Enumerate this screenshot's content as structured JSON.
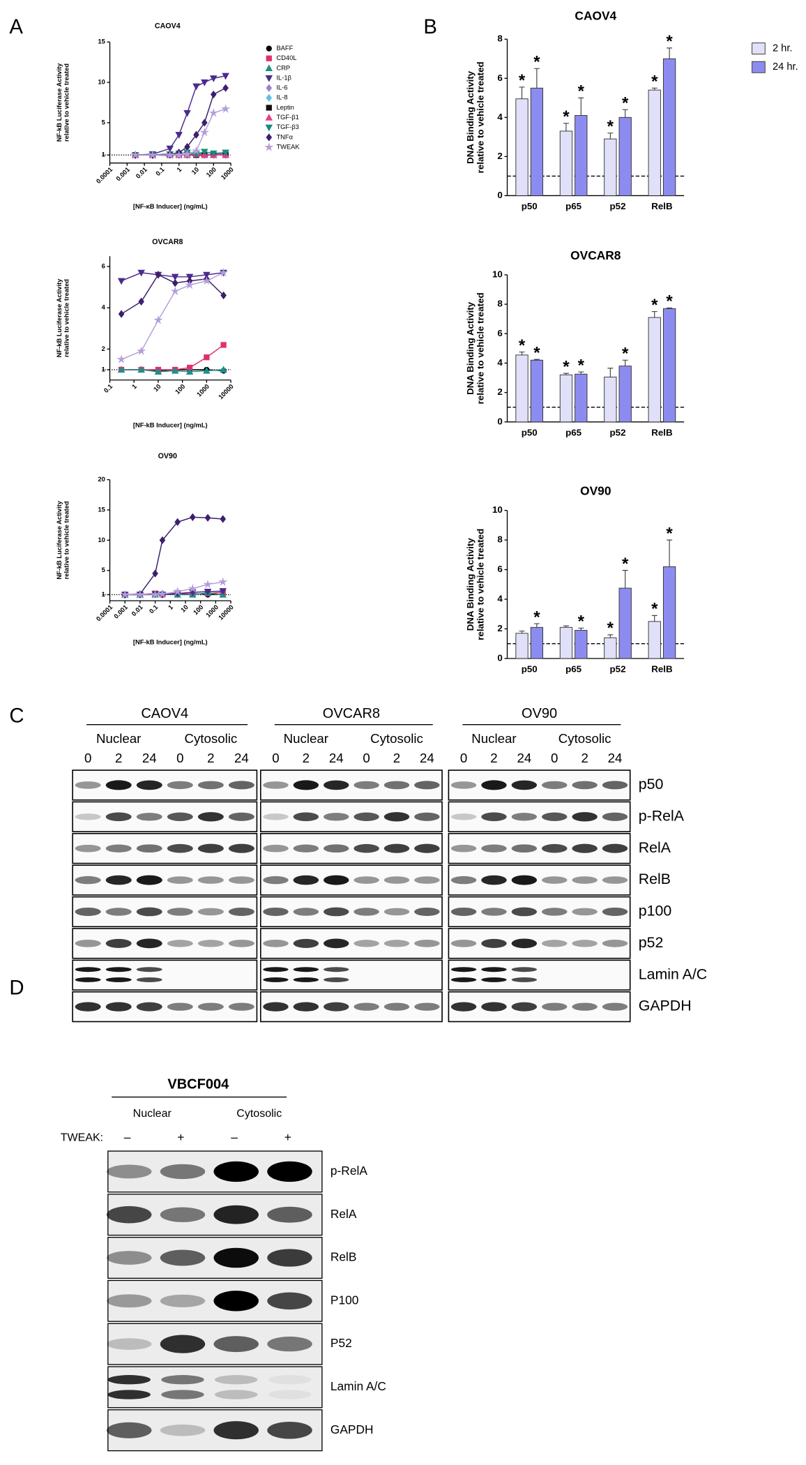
{
  "panel_labels": [
    "A",
    "B",
    "C",
    "D"
  ],
  "chart_data": [
    {
      "type": "line",
      "title": "CAOV4",
      "ylabel": [
        "NF-kB Luciferase Activity",
        "relative to vehicle treated"
      ],
      "xlabel": "[NF-κB Inducer] (ng/mL)",
      "log_x": true,
      "xlim": [
        0.0001,
        1000
      ],
      "xticks": [
        0.0001,
        0.001,
        0.01,
        0.1,
        1,
        10,
        100,
        1000
      ],
      "ylim": [
        0,
        15
      ],
      "yticks": [
        1,
        5,
        10,
        15
      ],
      "reference_line": 1,
      "legend": "right",
      "x": [
        0.003,
        0.03,
        0.3,
        1,
        3,
        10,
        30,
        100,
        500
      ],
      "series": [
        {
          "name": "BAFF",
          "color": "#000000",
          "marker": "circle",
          "values": [
            1,
            1,
            0.95,
            1,
            1,
            1,
            0.95,
            1,
            1
          ]
        },
        {
          "name": "CD40L",
          "color": "#e0306a",
          "marker": "square",
          "values": [
            1,
            1,
            1,
            1,
            1.1,
            1,
            1,
            1.1,
            1.2
          ]
        },
        {
          "name": "CRP",
          "color": "#1f8f8a",
          "marker": "triangle",
          "values": [
            1,
            1,
            1.1,
            1,
            1,
            1.2,
            1.1,
            1,
            1
          ]
        },
        {
          "name": "IL-1β",
          "color": "#4b2a8c",
          "marker": "triangle-down",
          "values": [
            1,
            1.1,
            1.8,
            3.5,
            6.2,
            9.5,
            10,
            10.5,
            10.8
          ]
        },
        {
          "name": "IL-6",
          "color": "#9b7fd4",
          "marker": "diamond",
          "values": [
            1,
            1,
            1,
            1,
            1,
            1,
            1.1,
            1,
            1
          ]
        },
        {
          "name": "IL-8",
          "color": "#5bc0eb",
          "marker": "diamond",
          "values": [
            1,
            1,
            1,
            1.05,
            1,
            1,
            1,
            1,
            1.1
          ]
        },
        {
          "name": "Leptin",
          "color": "#111111",
          "marker": "square",
          "values": [
            1,
            1,
            1,
            1,
            1,
            1,
            1,
            1,
            1
          ]
        },
        {
          "name": "TGF-β1",
          "color": "#e83e8c",
          "marker": "triangle",
          "values": [
            1,
            1,
            1,
            1,
            1,
            1.1,
            1,
            1,
            1
          ]
        },
        {
          "name": "TGF-β3",
          "color": "#1a8a7a",
          "marker": "triangle-down",
          "values": [
            1,
            1,
            1.1,
            1.2,
            1.3,
            1.1,
            1.4,
            1.2,
            1.3
          ]
        },
        {
          "name": "TNFα",
          "color": "#3d1f6e",
          "marker": "diamond",
          "values": [
            1,
            1,
            1.1,
            1.3,
            2,
            3.5,
            5,
            8.5,
            9.3
          ]
        },
        {
          "name": "TWEAK",
          "color": "#b39ddb",
          "marker": "star",
          "values": [
            1,
            1,
            1,
            1,
            1.1,
            1.5,
            3.8,
            6.2,
            6.7
          ]
        }
      ]
    },
    {
      "type": "line",
      "title": "OVCAR8",
      "ylabel": [
        "NF-kB Luciferase Activity",
        "relative to vehicle treated"
      ],
      "xlabel": "[NF-kB Inducer] (ng/mL)",
      "log_x": true,
      "xlim": [
        0.1,
        10000
      ],
      "xticks": [
        0.1,
        1,
        10,
        100,
        1000,
        10000
      ],
      "ylim": [
        0.5,
        6.5
      ],
      "yticks": [
        1,
        2,
        4,
        6
      ],
      "reference_line": 1,
      "x": [
        0.3,
        2,
        10,
        50,
        200,
        1000,
        5000
      ],
      "series": [
        {
          "color": "#000000",
          "marker": "circle",
          "values": [
            1,
            1,
            0.95,
            1,
            1,
            1,
            0.95
          ]
        },
        {
          "color": "#e0306a",
          "marker": "square",
          "values": [
            1,
            1,
            1,
            1,
            1.1,
            1.6,
            2.2
          ]
        },
        {
          "color": "#1f8f8a",
          "marker": "triangle",
          "values": [
            1,
            1,
            0.9,
            0.95,
            0.9,
            0.95,
            1
          ]
        },
        {
          "color": "#4b2a8c",
          "marker": "triangle-down",
          "values": [
            5.3,
            5.7,
            5.6,
            5.5,
            5.5,
            5.6,
            5.7
          ]
        },
        {
          "color": "#3d1f6e",
          "marker": "diamond",
          "values": [
            3.7,
            4.3,
            5.6,
            5.2,
            5.3,
            5.4,
            4.6
          ]
        },
        {
          "color": "#b39ddb",
          "marker": "star",
          "values": [
            1.5,
            1.9,
            3.4,
            4.8,
            5.1,
            5.3,
            5.7
          ]
        }
      ]
    },
    {
      "type": "line",
      "title": "OV90",
      "ylabel": [
        "NF-kB Luciferase Activity",
        "relative to vehicle treated"
      ],
      "xlabel": "[NF-kB Inducer] (ng/mL)",
      "log_x": true,
      "xlim": [
        0.0001,
        10000
      ],
      "xticks": [
        0.0001,
        0.001,
        0.01,
        0.1,
        1,
        10,
        100,
        1000,
        10000
      ],
      "ylim": [
        0,
        20
      ],
      "yticks": [
        1,
        5,
        10,
        15,
        20
      ],
      "reference_line": 1,
      "x": [
        0.001,
        0.01,
        0.1,
        0.3,
        3,
        30,
        300,
        3000
      ],
      "series": [
        {
          "color": "#000000",
          "marker": "circle",
          "values": [
            1,
            1,
            1,
            1.1,
            1,
            1.2,
            1,
            1.1
          ]
        },
        {
          "color": "#e0306a",
          "marker": "square",
          "values": [
            1,
            1,
            1.2,
            1,
            1.3,
            1.1,
            1.2,
            1.4
          ]
        },
        {
          "color": "#1f8f8a",
          "marker": "triangle",
          "values": [
            1,
            1,
            1,
            1.2,
            1,
            1,
            1.3,
            1
          ]
        },
        {
          "color": "#4b2a8c",
          "marker": "triangle-down",
          "values": [
            1,
            1,
            1.1,
            1,
            1.2,
            1.4,
            1.5,
            1.6
          ]
        },
        {
          "color": "#3d1f6e",
          "marker": "diamond",
          "values": [
            1,
            1.1,
            4.5,
            10,
            13,
            13.8,
            13.7,
            13.5
          ]
        },
        {
          "color": "#b39ddb",
          "marker": "star",
          "values": [
            1,
            1,
            1,
            1.1,
            1.5,
            2,
            2.7,
            3.1
          ]
        }
      ]
    },
    {
      "type": "bar",
      "title": "CAOV4",
      "ylabel": [
        "DNA Binding Activity",
        "relative to vehicle treated"
      ],
      "categories": [
        "p50",
        "p65",
        "p52",
        "RelB"
      ],
      "ylim": [
        0,
        8
      ],
      "yticks": [
        0,
        2,
        4,
        6,
        8
      ],
      "reference_line": 1,
      "legend": "right",
      "series": [
        {
          "name": "2 hr.",
          "color": "#e0e0f8",
          "values": [
            4.95,
            3.3,
            2.9,
            5.4
          ],
          "errors": [
            0.6,
            0.4,
            0.3,
            0.1
          ],
          "annotations": [
            "*",
            "*",
            "*",
            "*"
          ]
        },
        {
          "name": "24 hr.",
          "color": "#8c8cf0",
          "values": [
            5.5,
            4.1,
            4.0,
            7.0
          ],
          "errors": [
            1.0,
            0.9,
            0.4,
            0.55
          ],
          "annotations": [
            "*",
            "*",
            "*",
            "*"
          ]
        }
      ]
    },
    {
      "type": "bar",
      "title": "OVCAR8",
      "ylabel": [
        "DNA Binding Activity",
        "relative to vehicle treated"
      ],
      "categories": [
        "p50",
        "p65",
        "p52",
        "RelB"
      ],
      "ylim": [
        0,
        10
      ],
      "yticks": [
        0,
        2,
        4,
        6,
        8,
        10
      ],
      "reference_line": 1,
      "series": [
        {
          "color": "#e0e0f8",
          "values": [
            4.55,
            3.2,
            3.05,
            7.1
          ],
          "errors": [
            0.2,
            0.1,
            0.6,
            0.4
          ],
          "annotations": [
            "*",
            "*",
            null,
            "*"
          ]
        },
        {
          "color": "#8c8cf0",
          "values": [
            4.2,
            3.25,
            3.8,
            7.7
          ],
          "errors": [
            0.05,
            0.15,
            0.4,
            0.05
          ],
          "annotations": [
            "*",
            "*",
            "*",
            "*"
          ]
        }
      ]
    },
    {
      "type": "bar",
      "title": "OV90",
      "ylabel": [
        "DNA Binding Activity",
        "relative to vehicle treated"
      ],
      "categories": [
        "p50",
        "p65",
        "p52",
        "RelB"
      ],
      "ylim": [
        0,
        10
      ],
      "yticks": [
        0,
        2,
        4,
        6,
        8,
        10
      ],
      "reference_line": 1,
      "series": [
        {
          "color": "#e0e0f8",
          "values": [
            1.7,
            2.1,
            1.4,
            2.5
          ],
          "errors": [
            0.15,
            0.1,
            0.2,
            0.4
          ],
          "annotations": [
            null,
            null,
            "*",
            "*"
          ]
        },
        {
          "color": "#8c8cf0",
          "values": [
            2.1,
            1.9,
            4.75,
            6.2
          ],
          "errors": [
            0.25,
            0.15,
            1.2,
            1.8
          ],
          "annotations": [
            "*",
            "*",
            "*",
            "*"
          ]
        }
      ]
    }
  ],
  "blot_c": {
    "cell_lines": [
      {
        "name": "CAOV4",
        "fractions": [
          {
            "name": "Nuclear",
            "lanes": [
              0,
              2,
              24
            ]
          },
          {
            "name": "Cytosolic",
            "lanes": [
              0,
              2,
              24
            ]
          }
        ]
      },
      {
        "name": "OVCAR8",
        "fractions": [
          {
            "name": "Nuclear",
            "lanes": [
              0,
              2,
              24
            ]
          },
          {
            "name": "Cytosolic",
            "lanes": [
              0,
              2,
              24
            ]
          }
        ]
      },
      {
        "name": "OV90",
        "fractions": [
          {
            "name": "Nuclear",
            "lanes": [
              0,
              2,
              24
            ]
          },
          {
            "name": "Cytosolic",
            "lanes": [
              0,
              2,
              24
            ]
          }
        ]
      }
    ],
    "rows": [
      "p50",
      "p-RelA",
      "RelA",
      "RelB",
      "p100",
      "p52",
      "Lamin A/C",
      "GAPDH"
    ]
  },
  "blot_d": {
    "title": "VBCF004",
    "fractions": [
      "Nuclear",
      "Cytosolic"
    ],
    "treatment_label": "TWEAK:",
    "treatment": [
      "–",
      "+",
      "–",
      "+"
    ],
    "rows": [
      "p-RelA",
      "RelA",
      "RelB",
      "P100",
      "P52",
      "Lamin A/C",
      "GAPDH"
    ]
  }
}
